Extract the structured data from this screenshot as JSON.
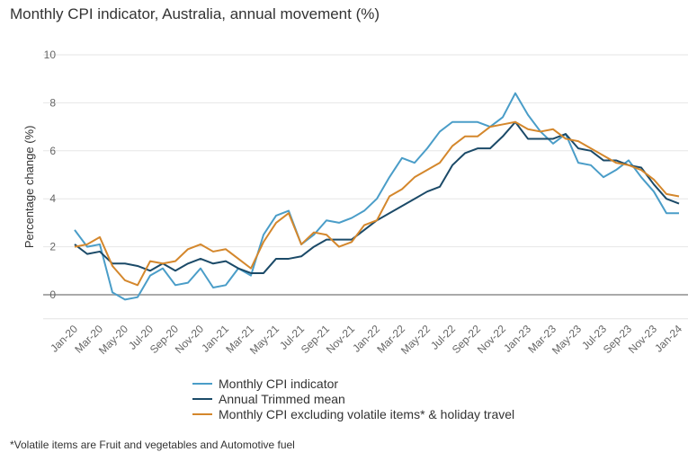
{
  "chart_data": {
    "type": "line",
    "title": "Monthly CPI indicator, Australia, annual movement (%)",
    "xlabel": "",
    "ylabel": "Percentage change (%)",
    "ylim": [
      -1,
      10
    ],
    "yticks": [
      0,
      2,
      4,
      6,
      8,
      10
    ],
    "grid": true,
    "legend_position": "bottom",
    "x": [
      "Jan-20",
      "Feb-20",
      "Mar-20",
      "Apr-20",
      "May-20",
      "Jun-20",
      "Jul-20",
      "Aug-20",
      "Sep-20",
      "Oct-20",
      "Nov-20",
      "Dec-20",
      "Jan-21",
      "Feb-21",
      "Mar-21",
      "Apr-21",
      "May-21",
      "Jun-21",
      "Jul-21",
      "Aug-21",
      "Sep-21",
      "Oct-21",
      "Nov-21",
      "Dec-21",
      "Jan-22",
      "Feb-22",
      "Mar-22",
      "Apr-22",
      "May-22",
      "Jun-22",
      "Jul-22",
      "Aug-22",
      "Sep-22",
      "Oct-22",
      "Nov-22",
      "Dec-22",
      "Jan-23",
      "Feb-23",
      "Mar-23",
      "Apr-23",
      "May-23",
      "Jun-23",
      "Jul-23",
      "Aug-23",
      "Sep-23",
      "Oct-23",
      "Nov-23",
      "Dec-23",
      "Jan-24"
    ],
    "xtick_labels": [
      "Jan-20",
      "Mar-20",
      "May-20",
      "Jul-20",
      "Sep-20",
      "Nov-20",
      "Jan-21",
      "Mar-21",
      "May-21",
      "Jul-21",
      "Sep-21",
      "Nov-21",
      "Jan-22",
      "Mar-22",
      "May-22",
      "Jul-22",
      "Sep-22",
      "Nov-22",
      "Jan-23",
      "Mar-23",
      "May-23",
      "Jul-23",
      "Sep-23",
      "Nov-23",
      "Jan-24"
    ],
    "series": [
      {
        "name": "Monthly CPI indicator",
        "color": "#4a9dc8",
        "values": [
          2.7,
          2.0,
          2.1,
          0.1,
          -0.2,
          -0.1,
          0.8,
          1.1,
          0.4,
          0.5,
          1.1,
          0.3,
          0.4,
          1.1,
          0.8,
          2.5,
          3.3,
          3.5,
          2.1,
          2.5,
          3.1,
          3.0,
          3.2,
          3.5,
          4.0,
          4.9,
          5.7,
          5.5,
          6.1,
          6.8,
          7.2,
          7.2,
          7.2,
          7.0,
          7.4,
          8.4,
          7.5,
          6.8,
          6.3,
          6.7,
          5.5,
          5.4,
          4.9,
          5.2,
          5.6,
          4.9,
          4.3,
          3.4,
          3.4
        ]
      },
      {
        "name": "Annual Trimmed mean",
        "color": "#1b4a68",
        "values": [
          2.1,
          1.7,
          1.8,
          1.3,
          1.3,
          1.2,
          1.0,
          1.3,
          1.0,
          1.3,
          1.5,
          1.3,
          1.4,
          1.1,
          0.9,
          0.9,
          1.5,
          1.5,
          1.6,
          2.0,
          2.3,
          2.3,
          2.3,
          2.7,
          3.1,
          3.4,
          3.7,
          4.0,
          4.3,
          4.5,
          5.4,
          5.9,
          6.1,
          6.1,
          6.6,
          7.2,
          6.5,
          6.5,
          6.5,
          6.7,
          6.1,
          6.0,
          5.6,
          5.6,
          5.4,
          5.3,
          4.6,
          4.0,
          3.8
        ]
      },
      {
        "name": "Monthly CPI excluding volatile items* & holiday travel",
        "color": "#d4872c",
        "values": [
          2.0,
          2.1,
          2.4,
          1.2,
          0.6,
          0.4,
          1.4,
          1.3,
          1.4,
          1.9,
          2.1,
          1.8,
          1.9,
          1.5,
          1.1,
          2.2,
          3.0,
          3.4,
          2.1,
          2.6,
          2.5,
          2.0,
          2.2,
          2.9,
          3.1,
          4.1,
          4.4,
          4.9,
          5.2,
          5.5,
          6.2,
          6.6,
          6.6,
          7.0,
          7.1,
          7.2,
          6.9,
          6.8,
          6.9,
          6.5,
          6.4,
          6.1,
          5.8,
          5.5,
          5.4,
          5.2,
          4.8,
          4.2,
          4.1
        ]
      }
    ],
    "footnote": "*Volatile items are Fruit and vegetables and Automotive fuel"
  }
}
